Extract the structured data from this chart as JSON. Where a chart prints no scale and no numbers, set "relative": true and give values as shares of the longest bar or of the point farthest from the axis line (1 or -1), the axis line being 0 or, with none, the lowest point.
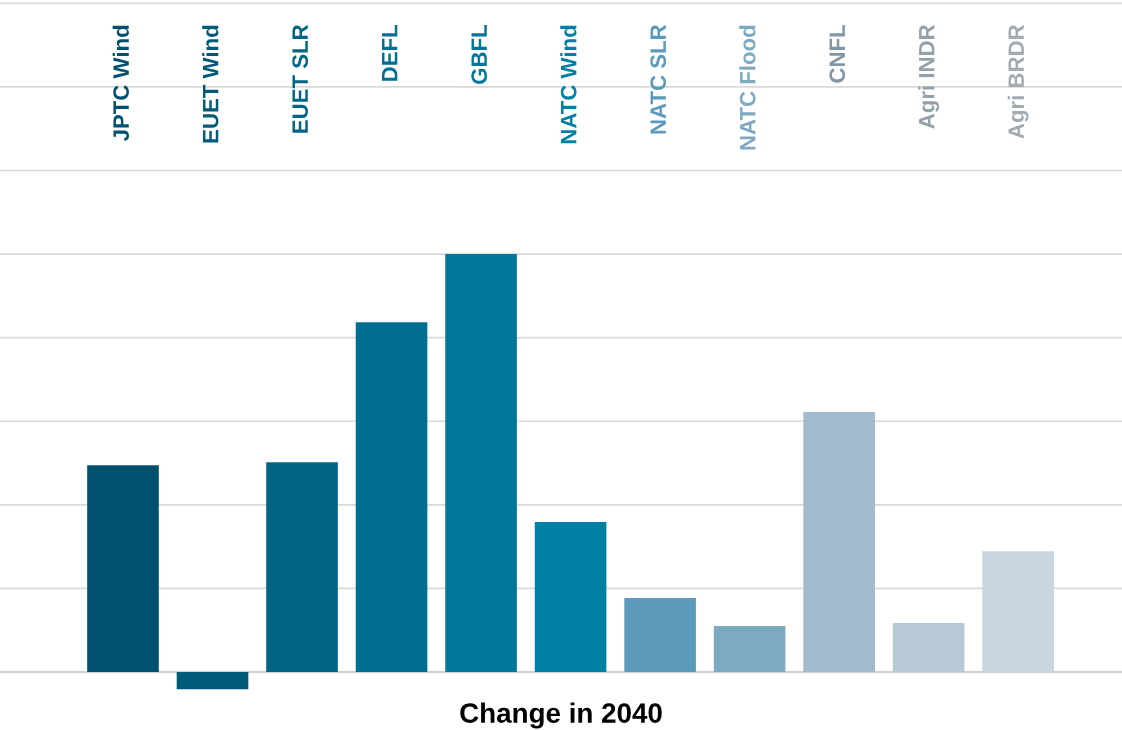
{
  "chart_data": {
    "type": "bar",
    "relative": true,
    "xlabel": "Change in 2040",
    "categories": [
      "JPTC Wind",
      "EUET Wind",
      "EUET SLR",
      "DEFL",
      "GBFL",
      "NATC Wind",
      "NATC SLR",
      "NATC Flood",
      "CNFL",
      "Agri INDR",
      "Agri BRDR"
    ],
    "values": [
      0.495,
      -0.041,
      0.502,
      0.837,
      1,
      0.359,
      0.177,
      0.11,
      0.622,
      0.117,
      0.289
    ],
    "colors": [
      "#00506e",
      "#005a78",
      "#006585",
      "#006e90",
      "#00779a",
      "#0080a5",
      "#5b9aba",
      "#7ea9c2",
      "#a1bacd",
      "#b8c9d6",
      "#c9d6df"
    ],
    "grid": "y"
  }
}
